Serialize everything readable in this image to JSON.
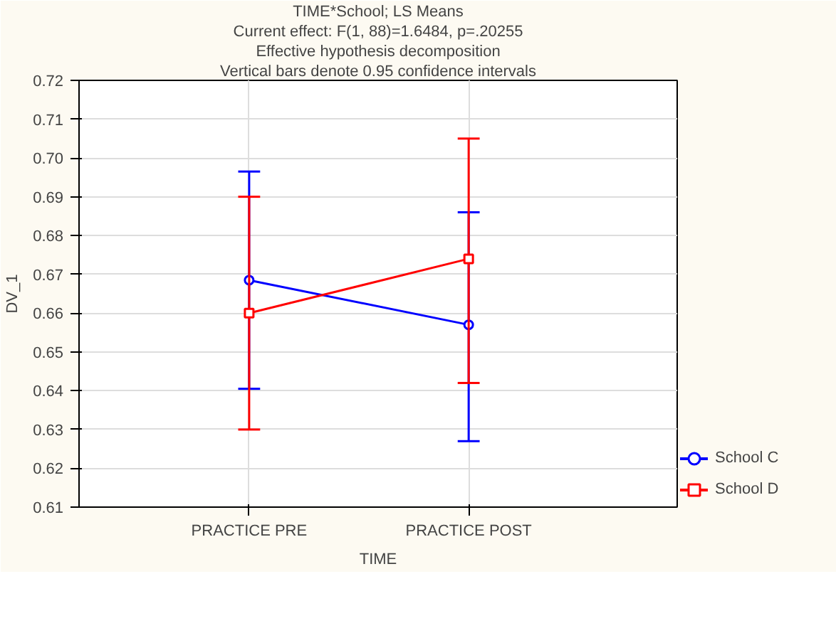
{
  "chart_data": {
    "type": "line",
    "title": "TIME*School; LS Means",
    "subtitle": "Current effect: F(1, 88)=1.6484, p=.20255",
    "annotations": [
      "Effective hypothesis decomposition",
      "Vertical bars denote 0.95 confidence intervals"
    ],
    "xlabel": "TIME",
    "ylabel": "DV_1",
    "categories": [
      "PRACTICE PRE",
      "PRACTICE POST"
    ],
    "series": [
      {
        "name": "School C",
        "color": "#0000ff",
        "marker": "circle",
        "values": [
          0.6685,
          0.657
        ],
        "errors": [
          [
            0.6405,
            0.6965
          ],
          [
            0.627,
            0.686
          ]
        ]
      },
      {
        "name": "School D",
        "color": "#ff0000",
        "marker": "square",
        "values": [
          0.66,
          0.674
        ],
        "errors": [
          [
            0.63,
            0.69
          ],
          [
            0.642,
            0.705
          ]
        ]
      }
    ],
    "ylim": [
      0.61,
      0.72
    ],
    "yticks": [
      {
        "value": 0.61,
        "label": "0.61"
      },
      {
        "value": 0.62,
        "label": "0.62"
      },
      {
        "value": 0.63,
        "label": "0.63"
      },
      {
        "value": 0.64,
        "label": "0.64"
      },
      {
        "value": 0.65,
        "label": "0.65"
      },
      {
        "value": 0.66,
        "label": "0.66"
      },
      {
        "value": 0.67,
        "label": "0.67"
      },
      {
        "value": 0.68,
        "label": "0.68"
      },
      {
        "value": 0.69,
        "label": "0.69"
      },
      {
        "value": 0.7,
        "label": "0.70"
      },
      {
        "value": 0.71,
        "label": "0.71"
      },
      {
        "value": 0.72,
        "label": "0.72"
      }
    ],
    "grid": true,
    "legend": "bottom right",
    "line_style": "solid"
  }
}
